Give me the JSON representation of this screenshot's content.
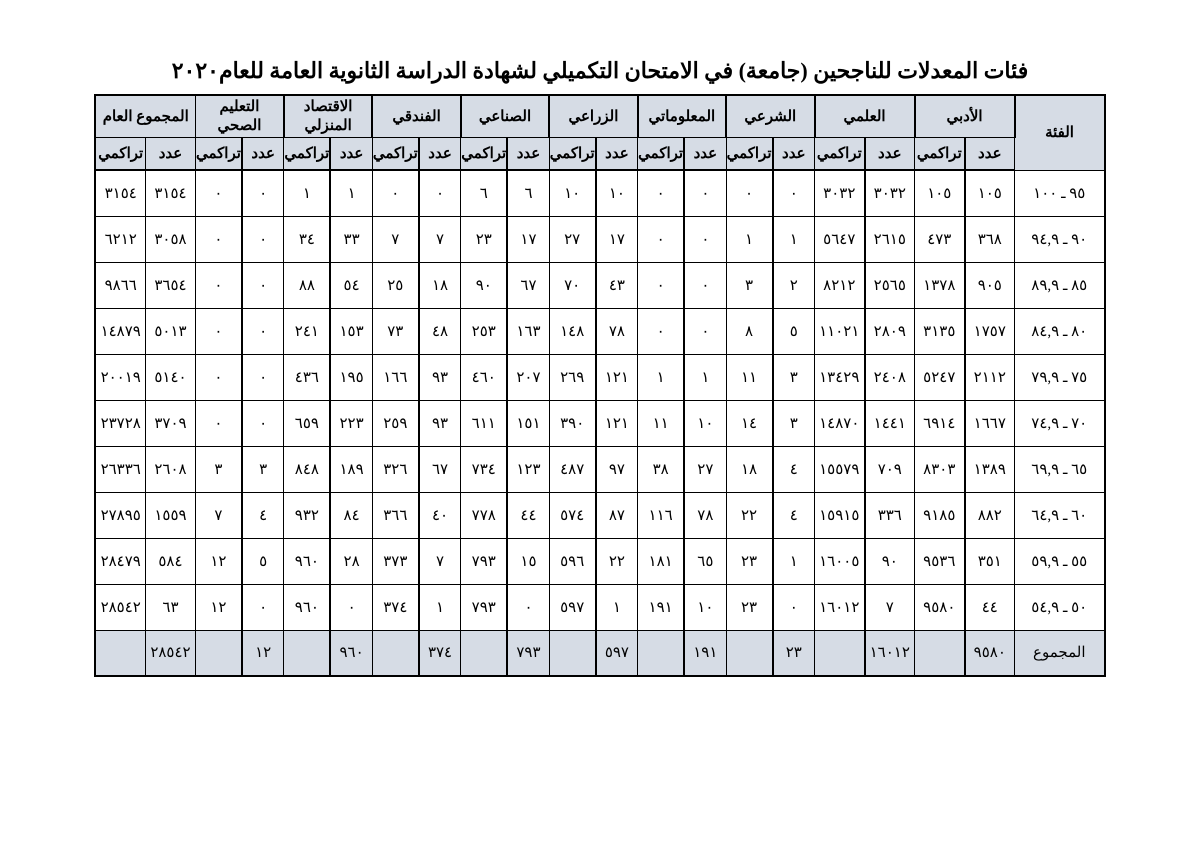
{
  "title": "فئات المعدلات للناجحين (جامعة) في الامتحان التكميلي لشهادة الدراسة الثانوية العامة للعام٢٠٢٠",
  "headers": {
    "category": "الفئة",
    "count": "عدد",
    "cumulative": "تراكمي",
    "total_label": "المجموع",
    "groups": [
      "الأدبي",
      "العلمي",
      "الشرعي",
      "المعلوماتي",
      "الزراعي",
      "الصناعي",
      "الفندقي",
      "الاقتصاد المنزلي",
      "التعليم الصحي",
      "المجموع العام"
    ]
  },
  "rows": [
    {
      "cat": "٩٥ ـ ١٠٠",
      "vals": [
        "١٠٥",
        "١٠٥",
        "٣٠٣٢",
        "٣٠٣٢",
        "٠",
        "٠",
        "٠",
        "٠",
        "١٠",
        "١٠",
        "٦",
        "٦",
        "٠",
        "٠",
        "١",
        "١",
        "٠",
        "٠",
        "٣١٥٤",
        "٣١٥٤"
      ]
    },
    {
      "cat": "٩٠ ـ ٩٤,٩",
      "vals": [
        "٣٦٨",
        "٤٧٣",
        "٢٦١٥",
        "٥٦٤٧",
        "١",
        "١",
        "٠",
        "٠",
        "١٧",
        "٢٧",
        "١٧",
        "٢٣",
        "٧",
        "٧",
        "٣٣",
        "٣٤",
        "٠",
        "٠",
        "٣٠٥٨",
        "٦٢١٢"
      ]
    },
    {
      "cat": "٨٥ ـ ٨٩,٩",
      "vals": [
        "٩٠٥",
        "١٣٧٨",
        "٢٥٦٥",
        "٨٢١٢",
        "٢",
        "٣",
        "٠",
        "٠",
        "٤٣",
        "٧٠",
        "٦٧",
        "٩٠",
        "١٨",
        "٢٥",
        "٥٤",
        "٨٨",
        "٠",
        "٠",
        "٣٦٥٤",
        "٩٨٦٦"
      ]
    },
    {
      "cat": "٨٠ ـ ٨٤,٩",
      "vals": [
        "١٧٥٧",
        "٣١٣٥",
        "٢٨٠٩",
        "١١٠٢١",
        "٥",
        "٨",
        "٠",
        "٠",
        "٧٨",
        "١٤٨",
        "١٦٣",
        "٢٥٣",
        "٤٨",
        "٧٣",
        "١٥٣",
        "٢٤١",
        "٠",
        "٠",
        "٥٠١٣",
        "١٤٨٧٩"
      ]
    },
    {
      "cat": "٧٥ ـ ٧٩,٩",
      "vals": [
        "٢١١٢",
        "٥٢٤٧",
        "٢٤٠٨",
        "١٣٤٢٩",
        "٣",
        "١١",
        "١",
        "١",
        "١٢١",
        "٢٦٩",
        "٢٠٧",
        "٤٦٠",
        "٩٣",
        "١٦٦",
        "١٩٥",
        "٤٣٦",
        "٠",
        "٠",
        "٥١٤٠",
        "٢٠٠١٩"
      ]
    },
    {
      "cat": "٧٠ ـ ٧٤,٩",
      "vals": [
        "١٦٦٧",
        "٦٩١٤",
        "١٤٤١",
        "١٤٨٧٠",
        "٣",
        "١٤",
        "١٠",
        "١١",
        "١٢١",
        "٣٩٠",
        "١٥١",
        "٦١١",
        "٩٣",
        "٢٥٩",
        "٢٢٣",
        "٦٥٩",
        "٠",
        "٠",
        "٣٧٠٩",
        "٢٣٧٢٨"
      ]
    },
    {
      "cat": "٦٥ ـ ٦٩,٩",
      "vals": [
        "١٣٨٩",
        "٨٣٠٣",
        "٧٠٩",
        "١٥٥٧٩",
        "٤",
        "١٨",
        "٢٧",
        "٣٨",
        "٩٧",
        "٤٨٧",
        "١٢٣",
        "٧٣٤",
        "٦٧",
        "٣٢٦",
        "١٨٩",
        "٨٤٨",
        "٣",
        "٣",
        "٢٦٠٨",
        "٢٦٣٣٦"
      ]
    },
    {
      "cat": "٦٠ ـ ٦٤,٩",
      "vals": [
        "٨٨٢",
        "٩١٨٥",
        "٣٣٦",
        "١٥٩١٥",
        "٤",
        "٢٢",
        "٧٨",
        "١١٦",
        "٨٧",
        "٥٧٤",
        "٤٤",
        "٧٧٨",
        "٤٠",
        "٣٦٦",
        "٨٤",
        "٩٣٢",
        "٤",
        "٧",
        "١٥٥٩",
        "٢٧٨٩٥"
      ]
    },
    {
      "cat": "٥٥ ـ ٥٩,٩",
      "vals": [
        "٣٥١",
        "٩٥٣٦",
        "٩٠",
        "١٦٠٠٥",
        "١",
        "٢٣",
        "٦٥",
        "١٨١",
        "٢٢",
        "٥٩٦",
        "١٥",
        "٧٩٣",
        "٧",
        "٣٧٣",
        "٢٨",
        "٩٦٠",
        "٥",
        "١٢",
        "٥٨٤",
        "٢٨٤٧٩"
      ]
    },
    {
      "cat": "٥٠ ـ ٥٤,٩",
      "vals": [
        "٤٤",
        "٩٥٨٠",
        "٧",
        "١٦٠١٢",
        "٠",
        "٢٣",
        "١٠",
        "١٩١",
        "١",
        "٥٩٧",
        "٠",
        "٧٩٣",
        "١",
        "٣٧٤",
        "٠",
        "٩٦٠",
        "٠",
        "١٢",
        "٦٣",
        "٢٨٥٤٢"
      ]
    }
  ],
  "totals": [
    "٩٥٨٠",
    "",
    "١٦٠١٢",
    "",
    "٢٣",
    "",
    "١٩١",
    "",
    "٥٩٧",
    "",
    "٧٩٣",
    "",
    "٣٧٤",
    "",
    "٩٦٠",
    "",
    "١٢",
    "",
    "٢٨٥٤٢",
    ""
  ]
}
